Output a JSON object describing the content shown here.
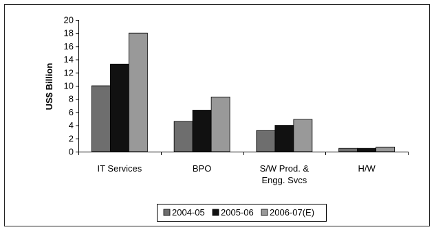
{
  "chart_data": {
    "type": "bar",
    "title": "",
    "xlabel": "",
    "ylabel": "US$ Billion",
    "ylim": [
      0,
      20
    ],
    "y_ticks": [
      0,
      2,
      4,
      6,
      8,
      10,
      12,
      14,
      16,
      18,
      20
    ],
    "categories": [
      [
        "IT Services"
      ],
      [
        "BPO"
      ],
      [
        "S/W Prod. &",
        "Engg. Svcs"
      ],
      [
        "H/W"
      ]
    ],
    "series": [
      {
        "name": "2004-05",
        "color": "#6e6e6e",
        "values": [
          10.0,
          4.6,
          3.2,
          0.5
        ]
      },
      {
        "name": "2005-06",
        "color": "#111111",
        "values": [
          13.3,
          6.3,
          4.0,
          0.5
        ]
      },
      {
        "name": "2006-07(E)",
        "color": "#999999",
        "values": [
          18.0,
          8.3,
          4.9,
          0.7
        ]
      }
    ],
    "grid": false,
    "legend_position": "bottom"
  }
}
